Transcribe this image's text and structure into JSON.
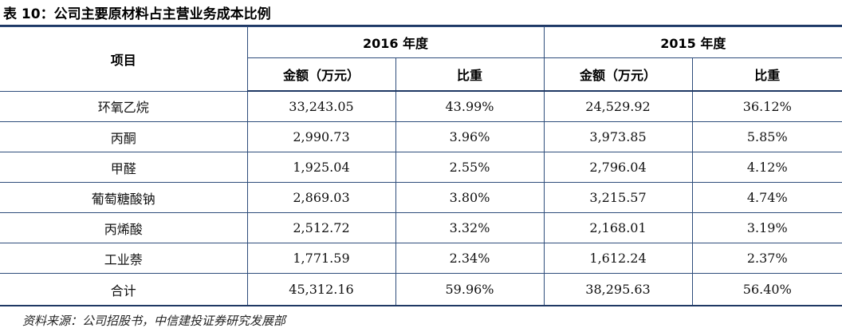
{
  "title": "表 10：公司主要原材料占主营业务成本比例",
  "table": {
    "item_header": "项目",
    "years": [
      "2016 年度",
      "2015 年度"
    ],
    "sub_headers": [
      "金额（万元）",
      "比重",
      "金额（万元）",
      "比重"
    ],
    "rows": [
      {
        "name": "环氧乙烷",
        "v2016": "33,243.05",
        "p2016": "43.99%",
        "v2015": "24,529.92",
        "p2015": "36.12%"
      },
      {
        "name": "丙酮",
        "v2016": "2,990.73",
        "p2016": "3.96%",
        "v2015": "3,973.85",
        "p2015": "5.85%"
      },
      {
        "name": "甲醛",
        "v2016": "1,925.04",
        "p2016": "2.55%",
        "v2015": "2,796.04",
        "p2015": "4.12%"
      },
      {
        "name": "葡萄糖酸钠",
        "v2016": "2,869.03",
        "p2016": "3.80%",
        "v2015": "3,215.57",
        "p2015": "4.74%"
      },
      {
        "name": "丙烯酸",
        "v2016": "2,512.72",
        "p2016": "3.32%",
        "v2015": "2,168.01",
        "p2015": "3.19%"
      },
      {
        "name": "工业萘",
        "v2016": "1,771.59",
        "p2016": "2.34%",
        "v2015": "1,612.24",
        "p2015": "2.37%"
      },
      {
        "name": "合计",
        "v2016": "45,312.16",
        "p2016": "59.96%",
        "v2015": "38,295.63",
        "p2015": "56.40%"
      }
    ]
  },
  "source": "资料来源：公司招股书，中信建投证券研究发展部"
}
